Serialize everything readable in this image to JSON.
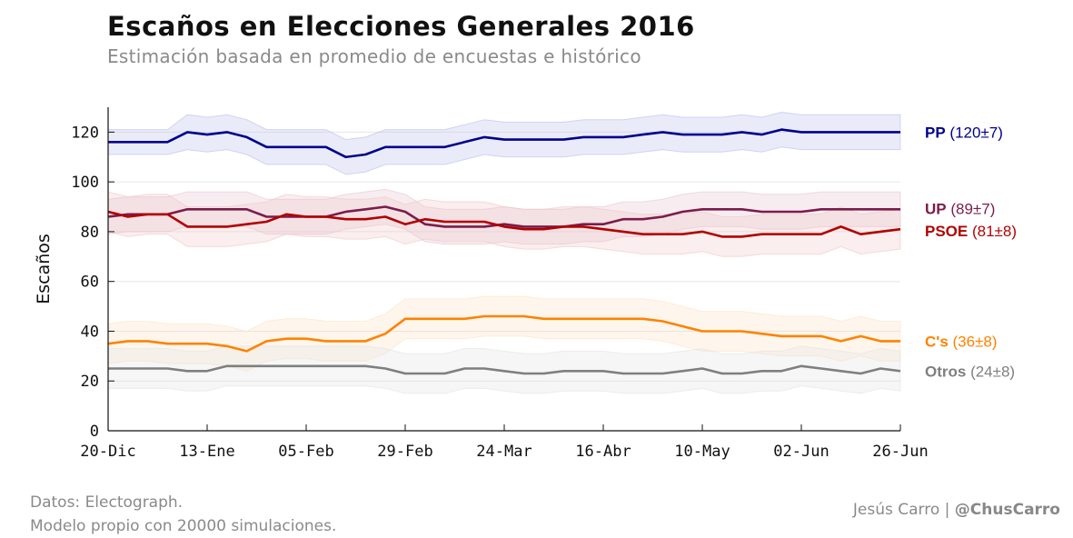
{
  "header": {
    "title": "Escaños en Elecciones Generales 2016",
    "subtitle": "Estimación basada en promedio de encuestas e histórico"
  },
  "footer": {
    "source_line1": "Datos: Electograph.",
    "source_line2": "Modelo propio con 20000 simulaciones.",
    "author": "Jesús Carro",
    "separator": "|",
    "handle": "@ChusCarro"
  },
  "chart_data": {
    "type": "line",
    "title": "Escaños en Elecciones Generales 2016",
    "subtitle": "Estimación basada en promedio de encuestas e histórico",
    "xlabel": "",
    "ylabel": "Escaños",
    "ylim": [
      0,
      130
    ],
    "yticks": [
      0,
      20,
      40,
      60,
      80,
      100,
      120
    ],
    "x_tick_labels": [
      "20-Dic",
      "13-Ene",
      "05-Feb",
      "29-Feb",
      "24-Mar",
      "16-Abr",
      "10-May",
      "02-Jun",
      "26-Jun"
    ],
    "x_tick_index": [
      0,
      5,
      10,
      15,
      20,
      25,
      30,
      35,
      40
    ],
    "x_count": 41,
    "grid": "horizontal",
    "legend_position": "right",
    "series": [
      {
        "name": "PP",
        "label_value": "(120±7)",
        "color": "#00008b",
        "band_color": "#b8bcec",
        "values": [
          116,
          116,
          116,
          116,
          120,
          119,
          120,
          118,
          114,
          114,
          114,
          114,
          110,
          111,
          114,
          114,
          114,
          114,
          116,
          118,
          117,
          117,
          117,
          117,
          118,
          118,
          118,
          119,
          120,
          119,
          119,
          119,
          120,
          119,
          121,
          120,
          120,
          120,
          120,
          120,
          120
        ],
        "lower": [
          111,
          111,
          111,
          111,
          113,
          112,
          113,
          111,
          107,
          107,
          107,
          107,
          103,
          104,
          107,
          107,
          107,
          107,
          109,
          111,
          110,
          110,
          110,
          110,
          111,
          111,
          111,
          112,
          113,
          112,
          112,
          112,
          113,
          112,
          114,
          113,
          113,
          113,
          113,
          113,
          113
        ],
        "upper": [
          121,
          121,
          121,
          121,
          127,
          126,
          127,
          125,
          121,
          121,
          121,
          121,
          117,
          118,
          121,
          121,
          121,
          121,
          123,
          125,
          124,
          124,
          124,
          124,
          125,
          125,
          125,
          126,
          127,
          126,
          126,
          126,
          127,
          126,
          128,
          127,
          127,
          127,
          127,
          127,
          127
        ]
      },
      {
        "name": "UP",
        "label_value": "(89±7)",
        "color": "#7b1c4a",
        "band_color": "#e6c3d2",
        "values": [
          86,
          87,
          87,
          87,
          89,
          89,
          89,
          89,
          86,
          86,
          86,
          86,
          88,
          89,
          90,
          88,
          83,
          82,
          82,
          82,
          83,
          82,
          82,
          82,
          83,
          83,
          85,
          85,
          86,
          88,
          89,
          89,
          89,
          88,
          88,
          88,
          89,
          89,
          89,
          89,
          89
        ],
        "lower": [
          79,
          80,
          80,
          80,
          82,
          82,
          82,
          82,
          79,
          79,
          79,
          79,
          81,
          82,
          83,
          81,
          76,
          75,
          75,
          75,
          76,
          75,
          75,
          75,
          76,
          76,
          78,
          78,
          79,
          81,
          82,
          82,
          82,
          81,
          81,
          81,
          82,
          82,
          82,
          82,
          82
        ],
        "upper": [
          93,
          94,
          94,
          94,
          96,
          96,
          96,
          96,
          93,
          93,
          93,
          93,
          95,
          96,
          97,
          95,
          90,
          89,
          89,
          89,
          90,
          89,
          89,
          89,
          90,
          90,
          92,
          92,
          93,
          95,
          96,
          96,
          96,
          95,
          95,
          95,
          96,
          96,
          96,
          96,
          96
        ]
      },
      {
        "name": "PSOE",
        "label_value": "(81±8)",
        "color": "#b20000",
        "band_color": "#f0c6c6",
        "values": [
          88,
          86,
          87,
          87,
          82,
          82,
          82,
          83,
          84,
          87,
          86,
          86,
          85,
          85,
          86,
          83,
          85,
          84,
          84,
          84,
          82,
          81,
          81,
          82,
          82,
          81,
          80,
          79,
          79,
          79,
          80,
          78,
          78,
          79,
          79,
          79,
          79,
          82,
          79,
          80,
          81
        ],
        "lower": [
          80,
          78,
          79,
          79,
          74,
          74,
          74,
          75,
          76,
          79,
          78,
          78,
          77,
          77,
          78,
          75,
          77,
          76,
          76,
          76,
          74,
          73,
          73,
          74,
          74,
          73,
          72,
          71,
          71,
          71,
          72,
          70,
          70,
          71,
          71,
          71,
          71,
          74,
          71,
          72,
          73
        ],
        "upper": [
          96,
          94,
          95,
          95,
          90,
          90,
          90,
          91,
          92,
          95,
          94,
          94,
          93,
          93,
          94,
          91,
          93,
          92,
          92,
          92,
          90,
          89,
          89,
          90,
          90,
          89,
          88,
          87,
          87,
          87,
          88,
          86,
          86,
          87,
          87,
          87,
          87,
          90,
          87,
          88,
          89
        ]
      },
      {
        "name": "C's",
        "label_value": "(36±8)",
        "color": "#ff8200",
        "band_color": "#fde2c2",
        "values": [
          35,
          36,
          36,
          35,
          35,
          35,
          34,
          32,
          36,
          37,
          37,
          36,
          36,
          36,
          39,
          45,
          45,
          45,
          45,
          46,
          46,
          46,
          45,
          45,
          45,
          45,
          45,
          45,
          44,
          42,
          40,
          40,
          40,
          39,
          38,
          38,
          38,
          36,
          38,
          36,
          36
        ],
        "lower": [
          27,
          28,
          28,
          27,
          27,
          27,
          26,
          24,
          28,
          29,
          29,
          28,
          28,
          28,
          31,
          37,
          37,
          37,
          37,
          38,
          38,
          38,
          37,
          37,
          37,
          37,
          37,
          37,
          36,
          34,
          32,
          32,
          32,
          31,
          30,
          30,
          30,
          28,
          30,
          28,
          28
        ],
        "upper": [
          43,
          44,
          44,
          43,
          43,
          43,
          42,
          40,
          44,
          45,
          45,
          44,
          44,
          44,
          47,
          53,
          53,
          53,
          53,
          54,
          54,
          54,
          53,
          53,
          53,
          53,
          53,
          53,
          52,
          50,
          48,
          48,
          48,
          47,
          46,
          46,
          46,
          44,
          46,
          44,
          44
        ]
      },
      {
        "name": "Otros",
        "label_value": "(24±8)",
        "color": "#7f7f7f",
        "band_color": "#e2e2e2",
        "values": [
          25,
          25,
          25,
          25,
          24,
          24,
          26,
          26,
          26,
          26,
          26,
          26,
          26,
          26,
          25,
          23,
          23,
          23,
          25,
          25,
          24,
          23,
          23,
          24,
          24,
          24,
          23,
          23,
          23,
          24,
          25,
          23,
          23,
          24,
          24,
          26,
          25,
          24,
          23,
          25,
          24
        ],
        "lower": [
          17,
          17,
          17,
          17,
          16,
          16,
          18,
          18,
          18,
          18,
          18,
          18,
          18,
          18,
          17,
          15,
          15,
          15,
          17,
          17,
          16,
          15,
          15,
          16,
          16,
          16,
          15,
          15,
          15,
          16,
          17,
          15,
          15,
          16,
          16,
          18,
          17,
          16,
          15,
          17,
          16
        ],
        "upper": [
          33,
          33,
          33,
          33,
          32,
          32,
          34,
          34,
          34,
          34,
          34,
          34,
          34,
          34,
          33,
          31,
          31,
          31,
          33,
          33,
          32,
          31,
          31,
          32,
          32,
          32,
          31,
          31,
          31,
          32,
          33,
          31,
          31,
          32,
          32,
          34,
          33,
          32,
          31,
          33,
          32
        ]
      }
    ]
  }
}
